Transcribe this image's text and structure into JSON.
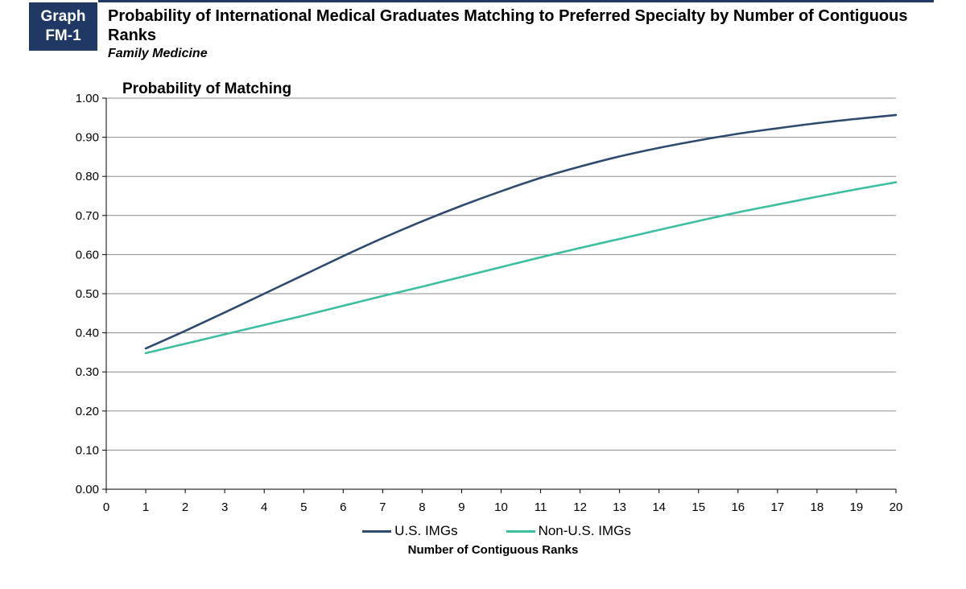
{
  "header": {
    "badge_line1": "Graph",
    "badge_line2": "FM-1",
    "title": "Probability of International Medical Graduates Matching to Preferred Specialty by Number of Contiguous Ranks",
    "subtitle": "Family Medicine"
  },
  "chart_data": {
    "type": "line",
    "title": "Probability of Matching",
    "xlabel": "Number of Contiguous Ranks",
    "ylabel": "",
    "xlim": [
      0,
      20
    ],
    "ylim": [
      0,
      1
    ],
    "x_ticks": [
      "0",
      "1",
      "2",
      "3",
      "4",
      "5",
      "6",
      "7",
      "8",
      "9",
      "10",
      "11",
      "12",
      "13",
      "14",
      "15",
      "16",
      "17",
      "18",
      "19",
      "20"
    ],
    "y_ticks": [
      "0.00",
      "0.10",
      "0.20",
      "0.30",
      "0.40",
      "0.50",
      "0.60",
      "0.70",
      "0.80",
      "0.90",
      "1.00"
    ],
    "grid": true,
    "legend_position": "bottom",
    "x": [
      1,
      2,
      3,
      4,
      5,
      6,
      7,
      8,
      9,
      10,
      11,
      12,
      13,
      14,
      15,
      16,
      17,
      18,
      19,
      20
    ],
    "series": [
      {
        "name": "U.S. IMGs",
        "color": "#2e4a6e",
        "values": [
          0.36,
          0.405,
          0.452,
          0.5,
          0.548,
          0.596,
          0.642,
          0.685,
          0.725,
          0.762,
          0.796,
          0.825,
          0.851,
          0.873,
          0.892,
          0.909,
          0.923,
          0.936,
          0.947,
          0.957
        ]
      },
      {
        "name": "Non-U.S. IMGs",
        "color": "#3cbfa0",
        "values": [
          0.348,
          0.372,
          0.396,
          0.42,
          0.444,
          0.469,
          0.494,
          0.518,
          0.543,
          0.568,
          0.593,
          0.617,
          0.64,
          0.663,
          0.686,
          0.708,
          0.728,
          0.748,
          0.767,
          0.785
        ]
      }
    ]
  }
}
